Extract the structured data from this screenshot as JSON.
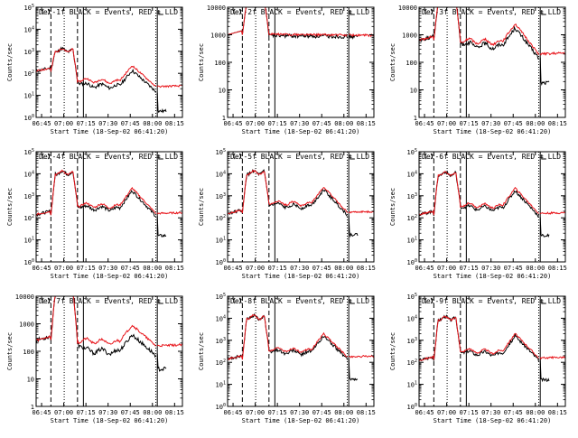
{
  "figure": {
    "x_label": "Start Time (18-Sep-02 06:41:20)",
    "y_label": "Counts/sec",
    "x_tick_labels": [
      "06:45",
      "07:00",
      "07:15",
      "07:30",
      "07:45",
      "08:00",
      "08:15"
    ],
    "legend_text": "BLACK = Events, RED = LLD",
    "colors": {
      "events": "#000000",
      "lld": "#e8141a",
      "axes": "#000000"
    }
  },
  "chart_data": [
    {
      "type": "line",
      "title": "Det-1f BLACK = Events, RED = LLD",
      "detector": "Det-1f",
      "ylog": true,
      "ylim_decades": [
        0,
        5
      ],
      "y_tick_style": "power",
      "xlim": [
        "06:41",
        "08:20"
      ],
      "series": [
        {
          "name": "Events",
          "kind": "events"
        },
        {
          "name": "LLD",
          "kind": "lld"
        }
      ],
      "profile": {
        "start_level": 2.1,
        "peak_level": 3.05,
        "mid_level": 1.7,
        "bump_level": 2.35,
        "plateau_level": 1.4,
        "flat": false,
        "events_drop": 0.22,
        "tail_drop": 0.9
      }
    },
    {
      "type": "line",
      "title": "Det-2f BLACK = Events, RED = LLD",
      "detector": "Det-2f",
      "ylog": true,
      "ylim_decades": [
        0,
        4
      ],
      "y_tick_style": "plain",
      "xlim": [
        "06:41",
        "08:20"
      ],
      "series": [
        {
          "name": "Events",
          "kind": "events"
        },
        {
          "name": "LLD",
          "kind": "lld"
        }
      ],
      "profile": {
        "start_level": 3.0,
        "peak_level": 4.25,
        "mid_level": 3.02,
        "bump_level": 3.02,
        "plateau_level": 2.97,
        "flat": true,
        "events_drop": 0.05,
        "tail_drop": 0.0
      }
    },
    {
      "type": "line",
      "title": "Det-3f BLACK = Events, RED = LLD",
      "detector": "Det-3f",
      "ylog": true,
      "ylim_decades": [
        0,
        4
      ],
      "y_tick_style": "plain",
      "xlim": [
        "06:41",
        "08:20"
      ],
      "series": [
        {
          "name": "Events",
          "kind": "events"
        },
        {
          "name": "LLD",
          "kind": "lld"
        }
      ],
      "profile": {
        "start_level": 2.8,
        "peak_level": 4.25,
        "mid_level": 2.8,
        "bump_level": 3.4,
        "plateau_level": 2.3,
        "flat": false,
        "events_drop": 0.15,
        "tail_drop": 0.9
      }
    },
    {
      "type": "line",
      "title": "Det-4f BLACK = Events, RED = LLD",
      "detector": "Det-4f",
      "ylog": true,
      "ylim_decades": [
        0,
        5
      ],
      "y_tick_style": "power",
      "xlim": [
        "06:41",
        "08:20"
      ],
      "series": [
        {
          "name": "Events",
          "kind": "events"
        },
        {
          "name": "LLD",
          "kind": "lld"
        }
      ],
      "profile": {
        "start_level": 2.15,
        "peak_level": 4.05,
        "mid_level": 2.6,
        "bump_level": 3.35,
        "plateau_level": 2.2,
        "flat": false,
        "events_drop": 0.12,
        "tail_drop": 0.9
      }
    },
    {
      "type": "line",
      "title": "Det-5f BLACK = Events, RED = LLD",
      "detector": "Det-5f",
      "ylog": true,
      "ylim_decades": [
        0,
        5
      ],
      "y_tick_style": "power",
      "xlim": [
        "06:41",
        "08:20"
      ],
      "series": [
        {
          "name": "Events",
          "kind": "events"
        },
        {
          "name": "LLD",
          "kind": "lld"
        }
      ],
      "profile": {
        "start_level": 2.2,
        "peak_level": 4.05,
        "mid_level": 2.7,
        "bump_level": 3.4,
        "plateau_level": 2.25,
        "flat": false,
        "events_drop": 0.12,
        "tail_drop": 0.9
      }
    },
    {
      "type": "line",
      "title": "Det-6f BLACK = Events, RED = LLD",
      "detector": "Det-6f",
      "ylog": true,
      "ylim_decades": [
        0,
        5
      ],
      "y_tick_style": "power",
      "xlim": [
        "06:41",
        "08:20"
      ],
      "series": [
        {
          "name": "Events",
          "kind": "events"
        },
        {
          "name": "LLD",
          "kind": "lld"
        }
      ],
      "profile": {
        "start_level": 2.15,
        "peak_level": 4.0,
        "mid_level": 2.6,
        "bump_level": 3.35,
        "plateau_level": 2.2,
        "flat": false,
        "events_drop": 0.12,
        "tail_drop": 0.9
      }
    },
    {
      "type": "line",
      "title": "Det-7f BLACK = Events, RED = LLD",
      "detector": "Det-7f",
      "ylog": true,
      "ylim_decades": [
        0,
        4
      ],
      "y_tick_style": "plain",
      "xlim": [
        "06:41",
        "08:20"
      ],
      "series": [
        {
          "name": "Events",
          "kind": "events"
        },
        {
          "name": "LLD",
          "kind": "lld"
        }
      ],
      "profile": {
        "start_level": 2.4,
        "peak_level": 4.25,
        "mid_level": 2.4,
        "bump_level": 2.95,
        "plateau_level": 2.2,
        "flat": false,
        "events_drop": 0.35,
        "tail_drop": 0.5
      }
    },
    {
      "type": "line",
      "title": "Det-8f BLACK = Events, RED = LLD",
      "detector": "Det-8f",
      "ylog": true,
      "ylim_decades": [
        0,
        5
      ],
      "y_tick_style": "power",
      "xlim": [
        "06:41",
        "08:20"
      ],
      "series": [
        {
          "name": "Events",
          "kind": "events"
        },
        {
          "name": "LLD",
          "kind": "lld"
        }
      ],
      "profile": {
        "start_level": 2.15,
        "peak_level": 4.05,
        "mid_level": 2.6,
        "bump_level": 3.3,
        "plateau_level": 2.25,
        "flat": false,
        "events_drop": 0.1,
        "tail_drop": 0.9
      }
    },
    {
      "type": "line",
      "title": "Det-9f BLACK = Events, RED = LLD",
      "detector": "Det-9f",
      "ylog": true,
      "ylim_decades": [
        0,
        5
      ],
      "y_tick_style": "power",
      "xlim": [
        "06:41",
        "08:20"
      ],
      "series": [
        {
          "name": "Events",
          "kind": "events"
        },
        {
          "name": "LLD",
          "kind": "lld"
        }
      ],
      "profile": {
        "start_level": 2.1,
        "peak_level": 4.0,
        "mid_level": 2.55,
        "bump_level": 3.3,
        "plateau_level": 2.2,
        "flat": false,
        "events_drop": 0.1,
        "tail_drop": 0.9
      }
    }
  ]
}
